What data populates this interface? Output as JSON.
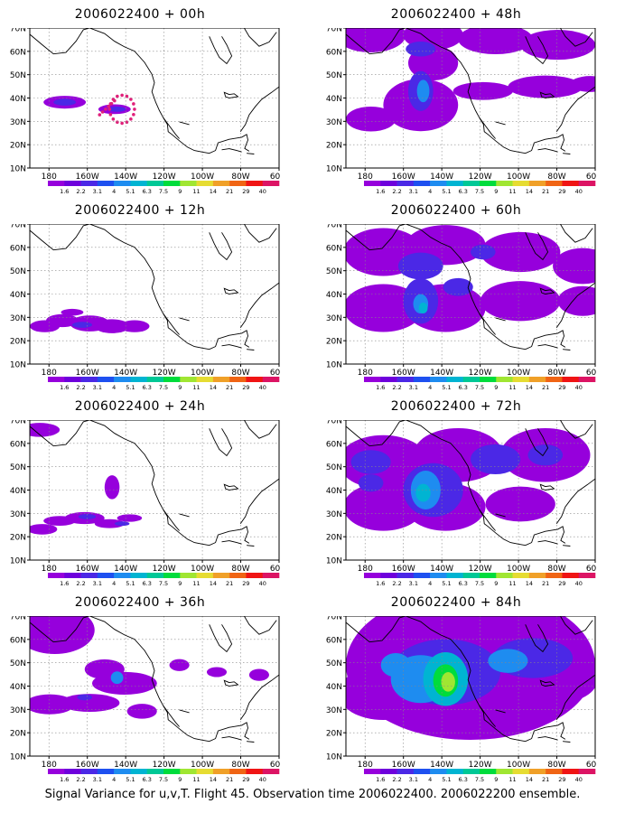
{
  "colorbar": {
    "labels": [
      "1.6",
      "2.2",
      "3.1",
      "4",
      "5.1",
      "6.3",
      "7.5",
      "9",
      "11",
      "14",
      "21",
      "29",
      "40"
    ],
    "colors": [
      "#9600dc",
      "#6e00dc",
      "#4b28e6",
      "#1e50f0",
      "#1e8cf0",
      "#00b4d2",
      "#00c896",
      "#00dc3c",
      "#a0e632",
      "#e6dc32",
      "#f0a028",
      "#f06414",
      "#f01414",
      "#dc1464"
    ]
  },
  "axes": {
    "x_ticks": [
      "180",
      "160W",
      "140W",
      "120W",
      "100W",
      "80W",
      "60W"
    ],
    "y_ticks": [
      "10N",
      "20N",
      "30N",
      "40N",
      "50N",
      "60N",
      "70N"
    ]
  },
  "panels": [
    {
      "title": "2006022400 + 00h"
    },
    {
      "title": "2006022400 + 48h"
    },
    {
      "title": "2006022400 + 12h"
    },
    {
      "title": "2006022400 + 60h"
    },
    {
      "title": "2006022400 + 24h"
    },
    {
      "title": "2006022400 + 72h"
    },
    {
      "title": "2006022400 + 36h"
    },
    {
      "title": "2006022400 + 84h"
    }
  ],
  "footer": "Signal Variance for u,v,T. Flight 45. Observation time 2006022400. 2006022200 ensemble."
}
